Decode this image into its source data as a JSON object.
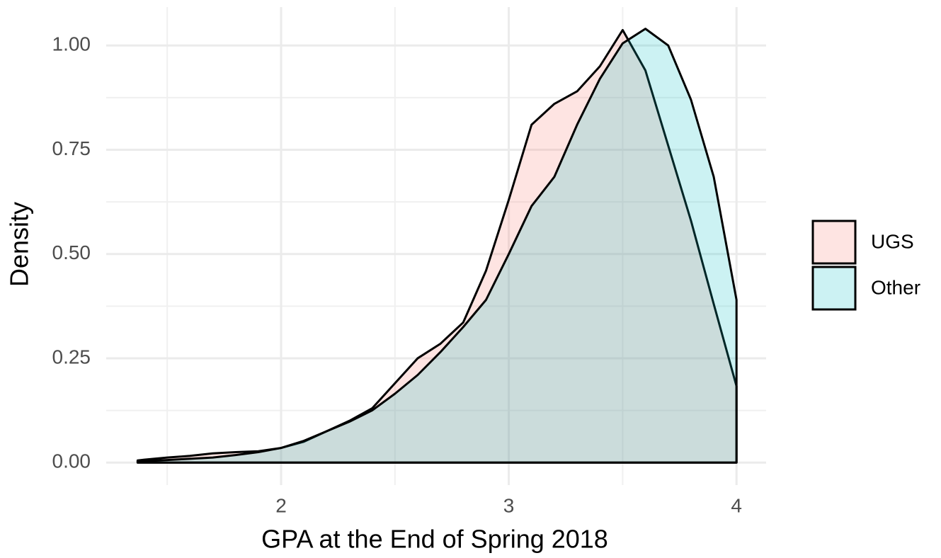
{
  "chart_data": {
    "type": "density",
    "x_label": "GPA at the End of Spring 2018",
    "y_label": "Density",
    "x": [
      1.37,
      1.4,
      1.5,
      1.6,
      1.7,
      1.8,
      1.9,
      2.0,
      2.1,
      2.2,
      2.3,
      2.4,
      2.5,
      2.6,
      2.7,
      2.8,
      2.9,
      3.0,
      3.1,
      3.2,
      3.3,
      3.4,
      3.5,
      3.6,
      3.7,
      3.8,
      3.9,
      4.0
    ],
    "series": [
      {
        "name": "UGS",
        "color": "#F8766D",
        "values": [
          0.005,
          0.007,
          0.012,
          0.016,
          0.022,
          0.025,
          0.027,
          0.035,
          0.05,
          0.075,
          0.1,
          0.13,
          0.19,
          0.25,
          0.285,
          0.336,
          0.46,
          0.63,
          0.81,
          0.86,
          0.89,
          0.95,
          1.037,
          0.94,
          0.76,
          0.58,
          0.38,
          0.183
        ]
      },
      {
        "name": "Other",
        "color": "#00BFC4",
        "values": [
          0.003,
          0.004,
          0.006,
          0.009,
          0.012,
          0.018,
          0.025,
          0.035,
          0.052,
          0.075,
          0.098,
          0.125,
          0.165,
          0.21,
          0.265,
          0.325,
          0.39,
          0.5,
          0.615,
          0.685,
          0.81,
          0.92,
          1.005,
          1.04,
          1.0,
          0.87,
          0.685,
          0.39
        ]
      }
    ],
    "xlim": [
      1.232,
      4.13
    ],
    "ylim": [
      -0.054,
      1.092
    ],
    "xticks": [
      2,
      3,
      4
    ],
    "yticks": [
      {
        "value": 0,
        "label": "0.00"
      },
      0.25,
      {
        "value": 0.5,
        "label": "0.50"
      },
      0.75,
      {
        "value": 1,
        "label": "1.00"
      }
    ],
    "x_minor_grid": [
      1.5,
      2.5,
      3.5
    ],
    "y_minor_grid": [
      0.125,
      0.375,
      0.625,
      0.875
    ],
    "grid": true,
    "legend": "right"
  }
}
